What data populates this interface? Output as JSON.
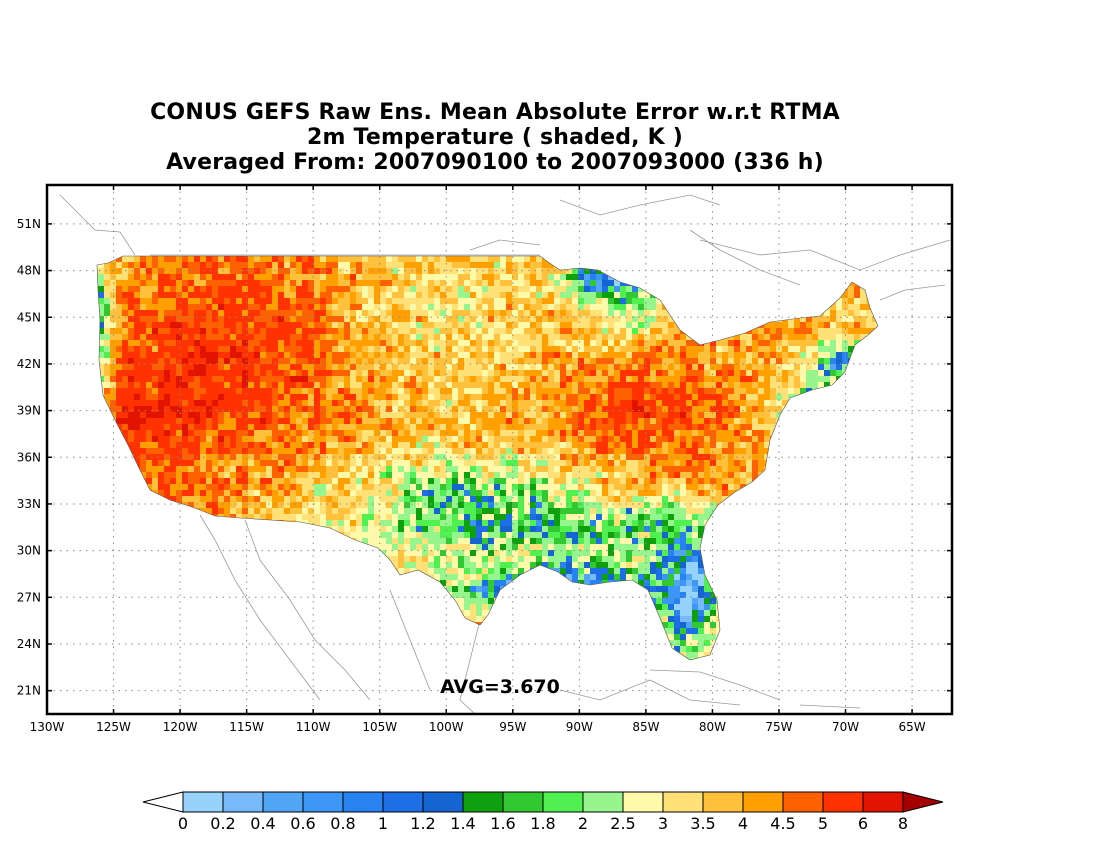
{
  "title": {
    "line1": "CONUS GEFS Raw Ens. Mean Absolute Error w.r.t RTMA",
    "line2": "2m Temperature ( shaded, K )",
    "line3": "Averaged From: 2007090100 to 2007093000 (336 h)"
  },
  "map": {
    "lon_range": [
      -130,
      -62
    ],
    "lat_range": [
      19.5,
      53.5
    ],
    "grid": "dotted",
    "lon_ticks": [
      {
        "value": -130,
        "label": "130W"
      },
      {
        "value": -125,
        "label": "125W"
      },
      {
        "value": -120,
        "label": "120W"
      },
      {
        "value": -115,
        "label": "115W"
      },
      {
        "value": -110,
        "label": "110W"
      },
      {
        "value": -105,
        "label": "105W"
      },
      {
        "value": -100,
        "label": "100W"
      },
      {
        "value": -95,
        "label": "95W"
      },
      {
        "value": -90,
        "label": "90W"
      },
      {
        "value": -85,
        "label": "85W"
      },
      {
        "value": -80,
        "label": "80W"
      },
      {
        "value": -75,
        "label": "75W"
      },
      {
        "value": -70,
        "label": "70W"
      },
      {
        "value": -65,
        "label": "65W"
      }
    ],
    "lat_ticks": [
      {
        "value": 21,
        "label": "21N"
      },
      {
        "value": 24,
        "label": "24N"
      },
      {
        "value": 27,
        "label": "27N"
      },
      {
        "value": 30,
        "label": "30N"
      },
      {
        "value": 33,
        "label": "33N"
      },
      {
        "value": 36,
        "label": "36N"
      },
      {
        "value": 39,
        "label": "39N"
      },
      {
        "value": 42,
        "label": "42N"
      },
      {
        "value": 45,
        "label": "45N"
      },
      {
        "value": 48,
        "label": "48N"
      },
      {
        "value": 51,
        "label": "51N"
      }
    ],
    "avg_label": "AVG=3.670"
  },
  "colorbar": {
    "labels": [
      "0",
      "0.2",
      "0.4",
      "0.6",
      "0.8",
      "1",
      "1.2",
      "1.4",
      "1.6",
      "1.8",
      "2",
      "2.5",
      "3",
      "3.5",
      "4",
      "4.5",
      "5",
      "6",
      "8"
    ],
    "colors": [
      "#96d2fa",
      "#78b9fa",
      "#50a5f5",
      "#3c96f5",
      "#2882f0",
      "#1e6ee6",
      "#1464d2",
      "#0fa00f",
      "#32c832",
      "#50f050",
      "#96f58c",
      "#fffaaa",
      "#ffe178",
      "#ffc03c",
      "#ffa000",
      "#ff6000",
      "#ff3200",
      "#e11400",
      "#c00000"
    ],
    "under_color": "#ffffff",
    "over_color": "#a50000"
  }
}
